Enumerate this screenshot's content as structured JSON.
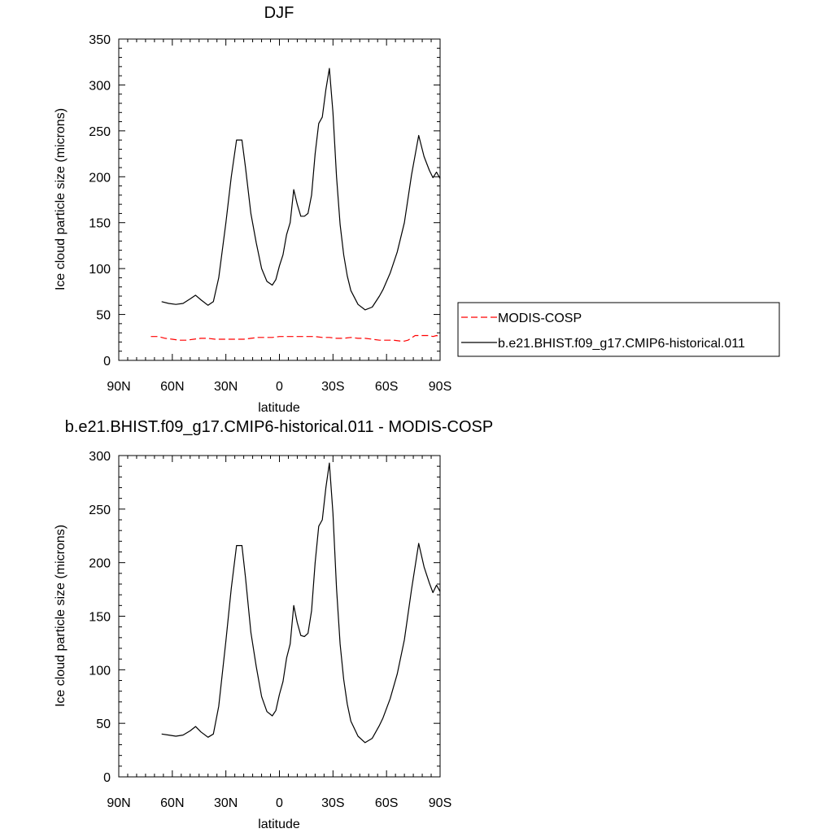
{
  "chart_data": [
    {
      "type": "line",
      "title": "DJF",
      "xlabel": "latitude",
      "ylabel": "Ice cloud particle size (microns)",
      "xlim": [
        90,
        -90
      ],
      "ylim": [
        0,
        350
      ],
      "x_ticks": [
        90,
        60,
        30,
        0,
        -30,
        -60,
        -90
      ],
      "x_tick_labels": [
        "90N",
        "60N",
        "30N",
        "0",
        "30S",
        "60S",
        "90S"
      ],
      "y_ticks": [
        0,
        50,
        100,
        150,
        200,
        250,
        300,
        350
      ],
      "y_tick_labels": [
        "0",
        "50",
        "100",
        "150",
        "200",
        "250",
        "300",
        "350"
      ],
      "grid": false,
      "legend_position": "right",
      "series": [
        {
          "name": "MODIS-COSP",
          "color": "#ff0000",
          "style": "dashed",
          "x": [
            72,
            68,
            64,
            60,
            56,
            52,
            48,
            44,
            40,
            36,
            32,
            28,
            24,
            20,
            16,
            12,
            8,
            4,
            0,
            -4,
            -8,
            -12,
            -16,
            -20,
            -24,
            -28,
            -32,
            -36,
            -40,
            -44,
            -48,
            -52,
            -56,
            -60,
            -64,
            -68,
            -70,
            -72,
            -76,
            -80,
            -84,
            -86,
            -88,
            -90
          ],
          "values": [
            26,
            26,
            24,
            23,
            22,
            22,
            23,
            24,
            24,
            23,
            23,
            23,
            23,
            23,
            24,
            25,
            25,
            25,
            26,
            26,
            26,
            26,
            26,
            26,
            25,
            25,
            24,
            24,
            25,
            24,
            24,
            23,
            22,
            22,
            22,
            21,
            21,
            22,
            27,
            27,
            27,
            26,
            27,
            26
          ]
        },
        {
          "name": "b.e21.BHIST.f09_g17.CMIP6-historical.011",
          "color": "#000000",
          "style": "solid",
          "x": [
            66,
            62,
            58,
            54,
            50,
            47,
            44,
            40,
            37,
            34,
            30,
            27,
            24,
            21,
            19,
            16,
            13,
            10,
            7,
            4,
            2,
            0,
            -2,
            -4,
            -6,
            -8,
            -10,
            -12,
            -14,
            -16,
            -18,
            -20,
            -22,
            -24,
            -26,
            -28,
            -30,
            -32,
            -34,
            -36,
            -38,
            -40,
            -44,
            -48,
            -52,
            -56,
            -58,
            -62,
            -66,
            -70,
            -74,
            -78,
            -81,
            -84,
            -86,
            -88,
            -90
          ],
          "values": [
            64,
            62,
            61,
            62,
            67,
            71,
            66,
            60,
            64,
            90,
            150,
            200,
            240,
            240,
            210,
            160,
            128,
            100,
            86,
            82,
            88,
            103,
            115,
            137,
            150,
            186,
            170,
            157,
            157,
            160,
            180,
            225,
            258,
            265,
            295,
            318,
            270,
            200,
            148,
            115,
            92,
            76,
            61,
            55,
            58,
            70,
            77,
            95,
            118,
            150,
            202,
            245,
            222,
            207,
            199,
            205,
            198
          ]
        }
      ]
    },
    {
      "type": "line",
      "title": "b.e21.BHIST.f09_g17.CMIP6-historical.011 - MODIS-COSP",
      "xlabel": "latitude",
      "ylabel": "Ice cloud particle size (microns)",
      "xlim": [
        90,
        -90
      ],
      "ylim": [
        0,
        300
      ],
      "x_ticks": [
        90,
        60,
        30,
        0,
        -30,
        -60,
        -90
      ],
      "x_tick_labels": [
        "90N",
        "60N",
        "30N",
        "0",
        "30S",
        "60S",
        "90S"
      ],
      "y_ticks": [
        0,
        50,
        100,
        150,
        200,
        250,
        300
      ],
      "y_tick_labels": [
        "0",
        "50",
        "100",
        "150",
        "200",
        "250",
        "300"
      ],
      "grid": false,
      "series": [
        {
          "color": "#000000",
          "style": "solid",
          "x": [
            66,
            62,
            58,
            54,
            50,
            47,
            44,
            40,
            37,
            34,
            30,
            27,
            24,
            21,
            19,
            16,
            13,
            10,
            7,
            4,
            2,
            0,
            -2,
            -4,
            -6,
            -8,
            -10,
            -12,
            -14,
            -16,
            -18,
            -20,
            -22,
            -24,
            -26,
            -28,
            -30,
            -32,
            -34,
            -36,
            -38,
            -40,
            -44,
            -48,
            -52,
            -56,
            -58,
            -62,
            -66,
            -70,
            -74,
            -78,
            -81,
            -84,
            -86,
            -88,
            -90
          ],
          "values": [
            40,
            39,
            38,
            39,
            43,
            47,
            42,
            37,
            40,
            66,
            127,
            176,
            216,
            216,
            186,
            135,
            103,
            75,
            61,
            57,
            62,
            77,
            89,
            111,
            124,
            160,
            144,
            132,
            131,
            134,
            155,
            200,
            234,
            240,
            270,
            293,
            246,
            176,
            124,
            91,
            68,
            52,
            38,
            32,
            36,
            48,
            55,
            73,
            96,
            128,
            175,
            218,
            196,
            181,
            172,
            179,
            173
          ]
        }
      ]
    }
  ]
}
